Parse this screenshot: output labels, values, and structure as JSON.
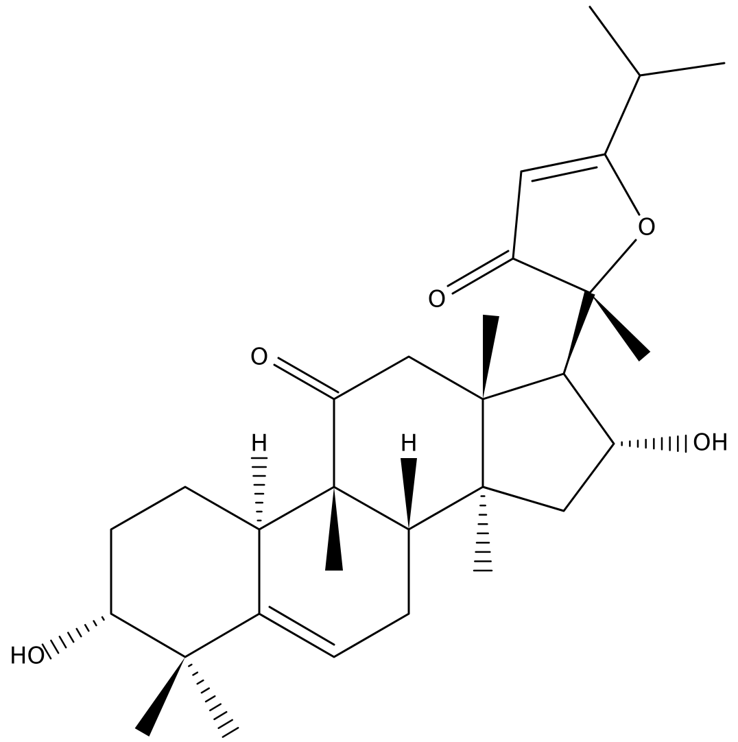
{
  "labels": {
    "ring_oxygen": "O",
    "lactone_ketone_oxygen": "O",
    "ketone_oxygen": "O",
    "hydroxyl_right": "OH",
    "hydroxyl_left": "HO",
    "hydrogen_top_left": "H",
    "hydrogen_top_right": "H"
  }
}
